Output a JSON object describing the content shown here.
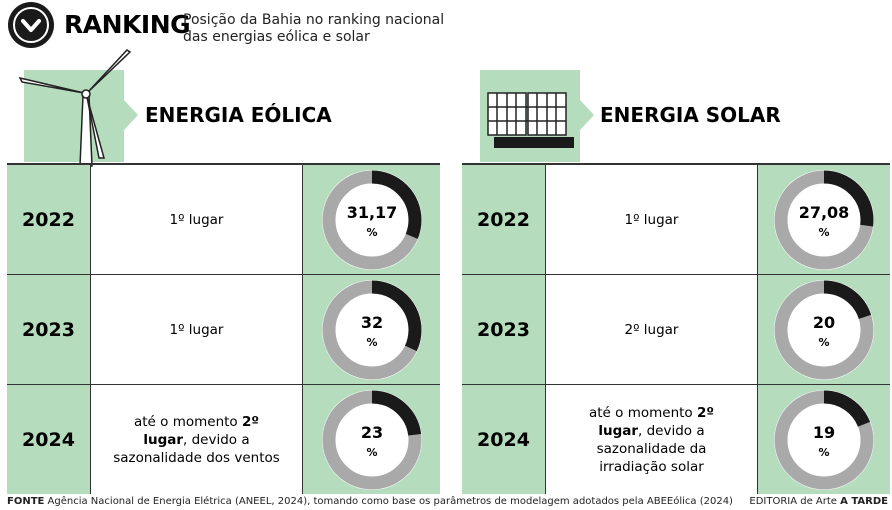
{
  "header": {
    "title": "RANKING",
    "subtitle_lines": [
      "Posição da Bahia no ranking nacional",
      "das energias eólica e solar"
    ]
  },
  "panels": [
    {
      "title": "ENERGIA EÓLICA",
      "rows": [
        {
          "year": 2022,
          "rank": "1º lugar",
          "value": 31.17,
          "value_label": "31,17",
          "unit": "%"
        },
        {
          "year": 2023,
          "rank": "1º lugar",
          "value": 32,
          "unit": "%"
        },
        {
          "year": 2024,
          "note_before": "até o momento",
          "rank": "2º lugar",
          "note_after": ", devido a sazonalidade dos ventos",
          "value": 23,
          "unit": "%"
        }
      ]
    },
    {
      "title": "ENERGIA SOLAR",
      "rows": [
        {
          "year": 2022,
          "rank": "1º lugar",
          "value": 27.08,
          "value_label": "27,08",
          "unit": "%"
        },
        {
          "year": 2023,
          "rank": "2º lugar",
          "value": 20,
          "unit": "%"
        },
        {
          "year": 2024,
          "note_before": "até o momento",
          "rank": "2º lugar",
          "note_after": ", devido a sazonalidade da irradiação solar",
          "value": 19,
          "unit": "%"
        }
      ]
    }
  ],
  "footer": {
    "source_label": "FONTE",
    "source": "Agência Nacional de Energia Elétrica (ANEEL, 2024), tomando como base os parâmetros de modelagem adotados pela ABEEólica (2024)",
    "credit_prefix": "EDITORIA de Arte",
    "credit": "A TARDE"
  }
}
